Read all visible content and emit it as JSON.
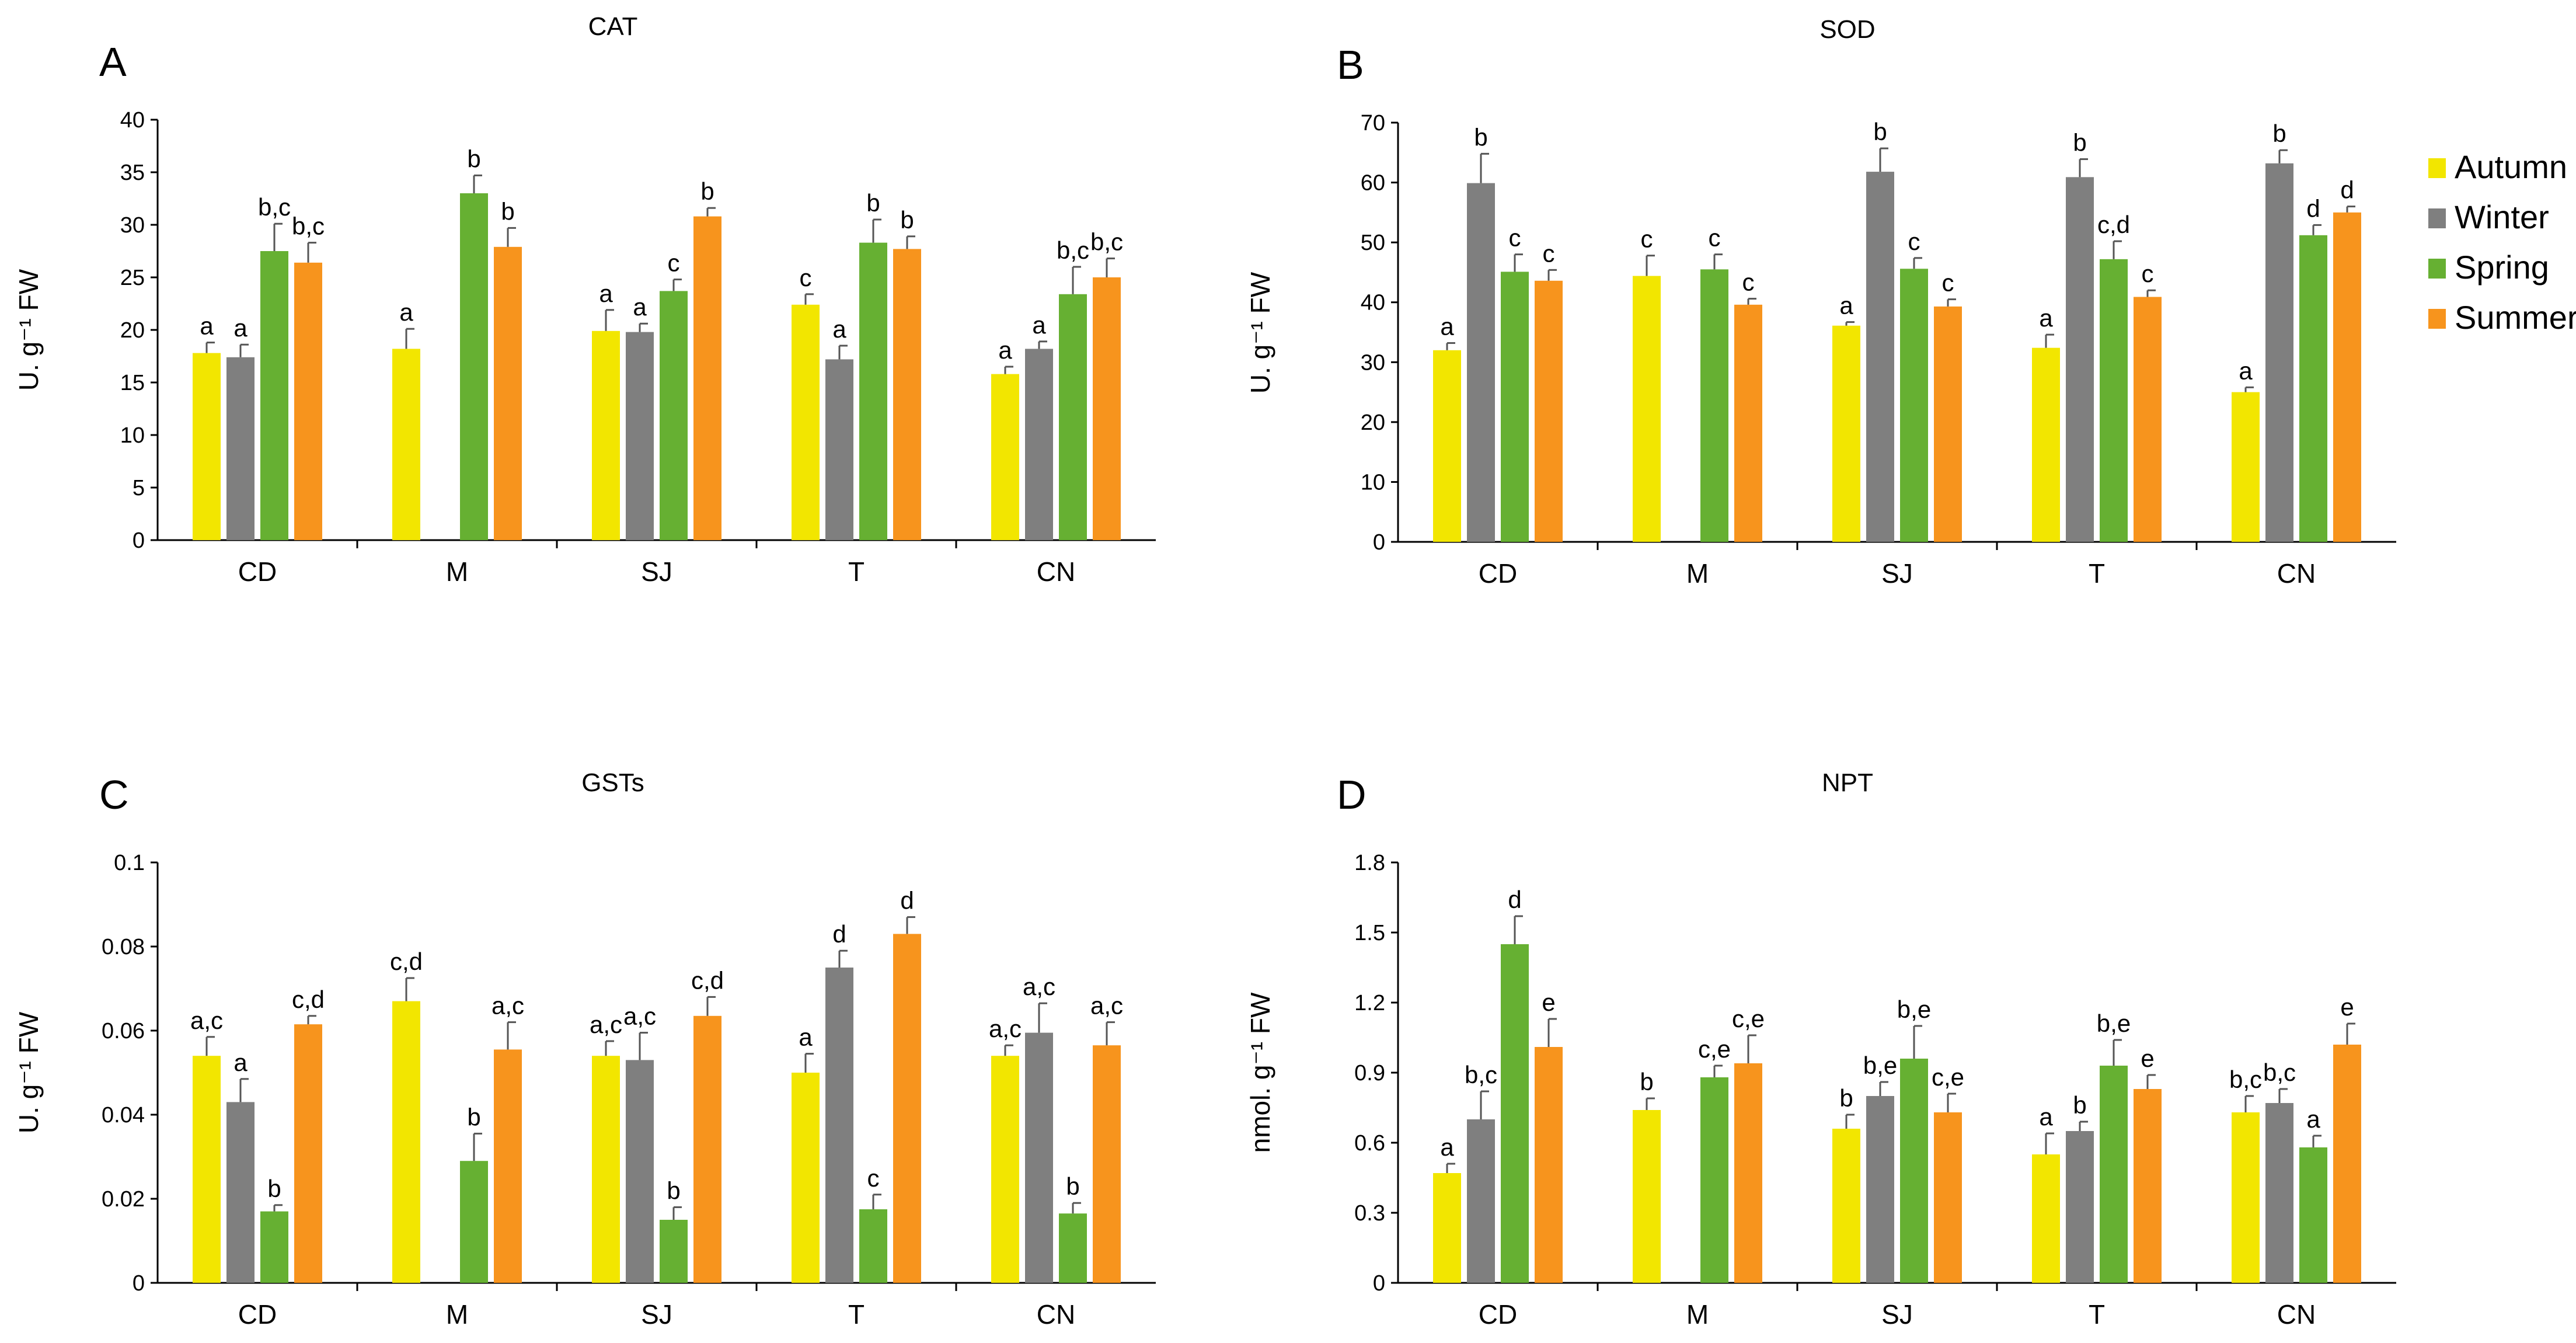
{
  "legend": {
    "items": [
      {
        "label": "Autumn",
        "color": "#f2e600"
      },
      {
        "label": "Winter",
        "color": "#7f7f7f"
      },
      {
        "label": "Spring",
        "color": "#66b032"
      },
      {
        "label": "Summer",
        "color": "#f7941d"
      }
    ]
  },
  "chart_data": [
    {
      "type": "bar",
      "panel": "A",
      "title": "CAT",
      "ylabel": "U. g⁻¹ FW",
      "ylim": [
        0,
        40
      ],
      "yticks": [
        0,
        5,
        10,
        15,
        20,
        25,
        30,
        35,
        40
      ],
      "ytick_labels": [
        "0",
        "5",
        "10",
        "15",
        "20",
        "25",
        "30",
        "35",
        "40"
      ],
      "categories": [
        "CD",
        "M",
        "SJ",
        "T",
        "CN"
      ],
      "series": [
        {
          "name": "Autumn",
          "values": [
            17.8,
            18.2,
            19.9,
            22.4,
            15.8
          ],
          "errors": [
            1.0,
            1.9,
            2.0,
            1.0,
            0.7
          ],
          "labels": [
            "a",
            "a",
            "a",
            "c",
            "a"
          ]
        },
        {
          "name": "Winter",
          "values": [
            17.4,
            null,
            19.8,
            17.2,
            18.2
          ],
          "errors": [
            1.2,
            null,
            0.8,
            1.3,
            0.7
          ],
          "labels": [
            "a",
            "",
            "a",
            "a",
            "a"
          ]
        },
        {
          "name": "Spring",
          "values": [
            27.5,
            33.0,
            23.7,
            28.3,
            23.4
          ],
          "errors": [
            2.6,
            1.7,
            1.1,
            2.2,
            2.6
          ],
          "labels": [
            "b,c",
            "b",
            "c",
            "b",
            "b,c"
          ]
        },
        {
          "name": "Summer",
          "values": [
            26.4,
            27.9,
            30.8,
            27.7,
            25.0
          ],
          "errors": [
            1.9,
            1.8,
            0.8,
            1.2,
            1.8
          ],
          "labels": [
            "b,c",
            "b",
            "b",
            "b",
            "b,c"
          ]
        }
      ]
    },
    {
      "type": "bar",
      "panel": "B",
      "title": "SOD",
      "ylabel": "U. g⁻¹ FW",
      "ylim": [
        0,
        70
      ],
      "yticks": [
        0,
        10,
        20,
        30,
        40,
        50,
        60,
        70
      ],
      "ytick_labels": [
        "0",
        "10",
        "20",
        "30",
        "40",
        "50",
        "60",
        "70"
      ],
      "categories": [
        "CD",
        "M",
        "SJ",
        "T",
        "CN"
      ],
      "series": [
        {
          "name": "Autumn",
          "values": [
            32.0,
            44.4,
            36.1,
            32.4,
            25.0
          ],
          "errors": [
            1.2,
            3.4,
            0.6,
            2.2,
            0.8
          ],
          "labels": [
            "a",
            "c",
            "a",
            "a",
            "a"
          ]
        },
        {
          "name": "Winter",
          "values": [
            59.9,
            null,
            61.8,
            60.9,
            63.2
          ],
          "errors": [
            4.9,
            null,
            3.9,
            3.0,
            2.2
          ],
          "labels": [
            "b",
            "",
            "b",
            "b",
            "b"
          ]
        },
        {
          "name": "Spring",
          "values": [
            45.1,
            45.5,
            45.6,
            47.2,
            51.2
          ],
          "errors": [
            2.9,
            2.5,
            1.8,
            3.0,
            1.7
          ],
          "labels": [
            "c",
            "c",
            "c",
            "c,d",
            "d"
          ]
        },
        {
          "name": "Summer",
          "values": [
            43.6,
            39.6,
            39.3,
            40.9,
            55.0
          ],
          "errors": [
            1.8,
            1.0,
            1.2,
            1.1,
            1.0
          ],
          "labels": [
            "c",
            "c",
            "c",
            "c",
            "d"
          ]
        }
      ]
    },
    {
      "type": "bar",
      "panel": "C",
      "title": "GSTs",
      "ylabel": "U. g⁻¹ FW",
      "ylim": [
        0,
        0.1
      ],
      "yticks": [
        0,
        0.02,
        0.04,
        0.06,
        0.08,
        0.1
      ],
      "ytick_labels": [
        "0",
        "0.02",
        "0.04",
        "0.06",
        "0.08",
        "0.1"
      ],
      "categories": [
        "CD",
        "M",
        "SJ",
        "T",
        "CN"
      ],
      "series": [
        {
          "name": "Autumn",
          "values": [
            0.054,
            0.067,
            0.054,
            0.05,
            0.054
          ],
          "errors": [
            0.0045,
            0.0055,
            0.0035,
            0.0045,
            0.0025
          ],
          "labels": [
            "a,c",
            "c,d",
            "a,c",
            "a",
            "a,c"
          ]
        },
        {
          "name": "Winter",
          "values": [
            0.043,
            null,
            0.053,
            0.075,
            0.0595
          ],
          "errors": [
            0.0055,
            null,
            0.0065,
            0.004,
            0.007
          ],
          "labels": [
            "a",
            "",
            "a,c",
            "d",
            "a,c"
          ]
        },
        {
          "name": "Spring",
          "values": [
            0.017,
            0.029,
            0.015,
            0.0175,
            0.0165
          ],
          "errors": [
            0.0015,
            0.0065,
            0.003,
            0.0035,
            0.0025
          ],
          "labels": [
            "b",
            "b",
            "b",
            "c",
            "b"
          ]
        },
        {
          "name": "Summer",
          "values": [
            0.0615,
            0.0555,
            0.0635,
            0.083,
            0.0565
          ],
          "errors": [
            0.002,
            0.0065,
            0.0045,
            0.004,
            0.0055
          ],
          "labels": [
            "c,d",
            "a,c",
            "c,d",
            "d",
            "a,c"
          ]
        }
      ]
    },
    {
      "type": "bar",
      "panel": "D",
      "title": "NPT",
      "ylabel": "nmol. g⁻¹ FW",
      "ylim": [
        0,
        1.8
      ],
      "yticks": [
        0,
        0.3,
        0.6,
        0.9,
        1.2,
        1.5,
        1.8
      ],
      "ytick_labels": [
        "0",
        "0.3",
        "0.6",
        "0.9",
        "1.2",
        "1.5",
        "1.8"
      ],
      "categories": [
        "CD",
        "M",
        "SJ",
        "T",
        "CN"
      ],
      "series": [
        {
          "name": "Autumn",
          "values": [
            0.47,
            0.74,
            0.66,
            0.55,
            0.73
          ],
          "errors": [
            0.04,
            0.05,
            0.06,
            0.09,
            0.07
          ],
          "labels": [
            "a",
            "b",
            "b",
            "a",
            "b,c"
          ]
        },
        {
          "name": "Winter",
          "values": [
            0.7,
            null,
            0.8,
            0.65,
            0.77
          ],
          "errors": [
            0.12,
            null,
            0.06,
            0.04,
            0.06
          ],
          "labels": [
            "b,c",
            "",
            "b,e",
            "b",
            "b,c"
          ]
        },
        {
          "name": "Spring",
          "values": [
            1.45,
            0.88,
            0.96,
            0.93,
            0.58
          ],
          "errors": [
            0.12,
            0.05,
            0.14,
            0.11,
            0.05
          ],
          "labels": [
            "d",
            "c,e",
            "b,e",
            "b,e",
            "a"
          ]
        },
        {
          "name": "Summer",
          "values": [
            1.01,
            0.94,
            0.73,
            0.83,
            1.02
          ],
          "errors": [
            0.12,
            0.12,
            0.08,
            0.06,
            0.09
          ],
          "labels": [
            "e",
            "c,e",
            "c,e",
            "e",
            "e"
          ]
        }
      ]
    }
  ]
}
